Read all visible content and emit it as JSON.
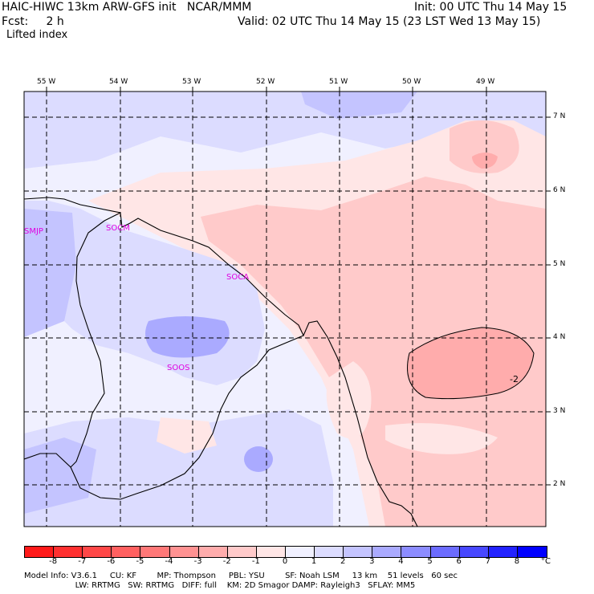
{
  "header": {
    "line1_left": "HAIC-HIWC 13km ARW-GFS init   NCAR/MMM",
    "line1_right": "Init: 00 UTC Thu 14 May 15",
    "line2_left": "Fcst:     2 h",
    "line2_right": "Valid: 02 UTC Thu 14 May 15 (23 LST Wed 13 May 15)",
    "field": "Lifted index"
  },
  "map": {
    "lon_labels": [
      "55 W",
      "54 W",
      "53 W",
      "52 W",
      "51 W",
      "50 W",
      "49 W"
    ],
    "lat_labels": [
      "7 N",
      "6 N",
      "5 N",
      "4 N",
      "3 N",
      "2 N"
    ],
    "stations": [
      "SMJP",
      "SOCM",
      "SOCA",
      "SOOS"
    ],
    "contour_label": "-2"
  },
  "colorbar": {
    "ticks": [
      "-8",
      "-7",
      "-6",
      "-5",
      "-4",
      "-3",
      "-2",
      "-1",
      "0",
      "1",
      "2",
      "3",
      "4",
      "5",
      "6",
      "7",
      "8"
    ],
    "unit": "°C",
    "colors": [
      "#ff1a1a",
      "#ff3030",
      "#ff4848",
      "#ff6060",
      "#ff7878",
      "#ff9292",
      "#ffacac",
      "#ffcaca",
      "#ffe6e6",
      "#f0f0ff",
      "#dcdcff",
      "#c4c4ff",
      "#aaaaff",
      "#8c8cff",
      "#6c6cff",
      "#4848ff",
      "#2222ff",
      "#0000ff"
    ]
  },
  "model_info": {
    "line1": "Model Info: V3.6.1     CU: KF        MP: Thompson     PBL: YSU        SF: Noah LSM     13 km    51 levels   60 sec",
    "line2": "                    LW: RRTMG   SW: RRTMG   DIFF: full    KM: 2D Smagor DAMP: Rayleigh3   SFLAY: MM5"
  }
}
